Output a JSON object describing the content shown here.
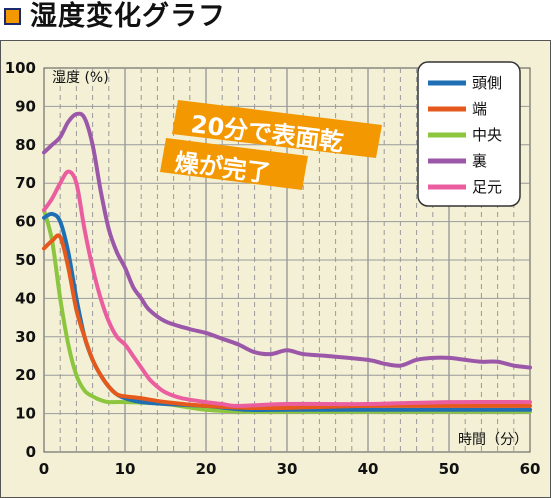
{
  "header": {
    "title": "湿度変化グラフ"
  },
  "colors": {
    "plot_bg": "#f3f0d5",
    "grid": "#9a9a9a",
    "title_square": "#f39800",
    "callout_bg": "#f39800"
  },
  "annotation": {
    "line1": "20分で表面乾",
    "line2": "燥が完了"
  },
  "chart_data": {
    "type": "line",
    "title": "",
    "xlabel": "時間（分）",
    "ylabel": "湿度 (%)",
    "xlim": [
      0,
      60
    ],
    "ylim": [
      0,
      100
    ],
    "x_ticks": [
      0,
      10,
      20,
      30,
      40,
      50,
      60
    ],
    "y_ticks": [
      0,
      10,
      20,
      30,
      40,
      50,
      60,
      70,
      80,
      90,
      100
    ],
    "grid": true,
    "legend_position": "top-right",
    "series": [
      {
        "name": "頭側",
        "color": "#1f6fb5",
        "points": [
          [
            0,
            61
          ],
          [
            1,
            62
          ],
          [
            2,
            60
          ],
          [
            3,
            52
          ],
          [
            4,
            40
          ],
          [
            5,
            30
          ],
          [
            6,
            24
          ],
          [
            7,
            20
          ],
          [
            8,
            17
          ],
          [
            9,
            15
          ],
          [
            10,
            14
          ],
          [
            12,
            13
          ],
          [
            15,
            12.5
          ],
          [
            20,
            12
          ],
          [
            25,
            11
          ],
          [
            30,
            11
          ],
          [
            40,
            11
          ],
          [
            50,
            11
          ],
          [
            60,
            11
          ]
        ]
      },
      {
        "name": "端",
        "color": "#e55a1c",
        "points": [
          [
            0,
            53
          ],
          [
            1,
            55
          ],
          [
            2,
            56
          ],
          [
            3,
            48
          ],
          [
            4,
            37
          ],
          [
            5,
            30
          ],
          [
            6,
            24
          ],
          [
            7,
            20
          ],
          [
            8,
            17
          ],
          [
            9,
            15
          ],
          [
            10,
            14.5
          ],
          [
            12,
            14
          ],
          [
            15,
            13
          ],
          [
            20,
            12
          ],
          [
            25,
            11.5
          ],
          [
            30,
            11.5
          ],
          [
            40,
            12
          ],
          [
            50,
            12
          ],
          [
            60,
            12
          ]
        ]
      },
      {
        "name": "中央",
        "color": "#8cc63f",
        "points": [
          [
            0,
            63
          ],
          [
            1,
            55
          ],
          [
            2,
            40
          ],
          [
            3,
            28
          ],
          [
            4,
            20
          ],
          [
            5,
            16
          ],
          [
            6,
            14.5
          ],
          [
            7,
            13.5
          ],
          [
            8,
            13
          ],
          [
            10,
            13
          ],
          [
            15,
            12.5
          ],
          [
            20,
            11
          ],
          [
            25,
            10.5
          ],
          [
            30,
            10.5
          ],
          [
            40,
            10.5
          ],
          [
            50,
            10.5
          ],
          [
            60,
            10.5
          ]
        ]
      },
      {
        "name": "裏",
        "color": "#9b58a8",
        "points": [
          [
            0,
            78
          ],
          [
            1,
            80
          ],
          [
            2,
            82
          ],
          [
            3,
            86
          ],
          [
            4,
            88
          ],
          [
            5,
            87
          ],
          [
            6,
            80
          ],
          [
            7,
            68
          ],
          [
            8,
            58
          ],
          [
            9,
            52
          ],
          [
            10,
            48
          ],
          [
            11,
            43
          ],
          [
            12,
            40
          ],
          [
            13,
            37
          ],
          [
            15,
            34
          ],
          [
            18,
            32
          ],
          [
            20,
            31
          ],
          [
            22,
            29.5
          ],
          [
            24,
            28
          ],
          [
            26,
            26
          ],
          [
            28,
            25.5
          ],
          [
            30,
            26.5
          ],
          [
            32,
            25.5
          ],
          [
            35,
            25
          ],
          [
            40,
            24
          ],
          [
            42,
            23
          ],
          [
            44,
            22.5
          ],
          [
            46,
            24
          ],
          [
            48,
            24.5
          ],
          [
            50,
            24.5
          ],
          [
            52,
            24
          ],
          [
            54,
            23.5
          ],
          [
            56,
            23.5
          ],
          [
            58,
            22.5
          ],
          [
            60,
            22
          ]
        ]
      },
      {
        "name": "足元",
        "color": "#ea5ea0",
        "points": [
          [
            0,
            63
          ],
          [
            1,
            66
          ],
          [
            2,
            70
          ],
          [
            3,
            73
          ],
          [
            4,
            70
          ],
          [
            5,
            58
          ],
          [
            6,
            48
          ],
          [
            7,
            40
          ],
          [
            8,
            34
          ],
          [
            9,
            30
          ],
          [
            10,
            28
          ],
          [
            11,
            25
          ],
          [
            12,
            22
          ],
          [
            13,
            19
          ],
          [
            14,
            17
          ],
          [
            15,
            15.5
          ],
          [
            17,
            14
          ],
          [
            20,
            13
          ],
          [
            22,
            12.5
          ],
          [
            24,
            12
          ],
          [
            30,
            12.5
          ],
          [
            40,
            12.5
          ],
          [
            50,
            13
          ],
          [
            60,
            13
          ]
        ]
      }
    ]
  }
}
